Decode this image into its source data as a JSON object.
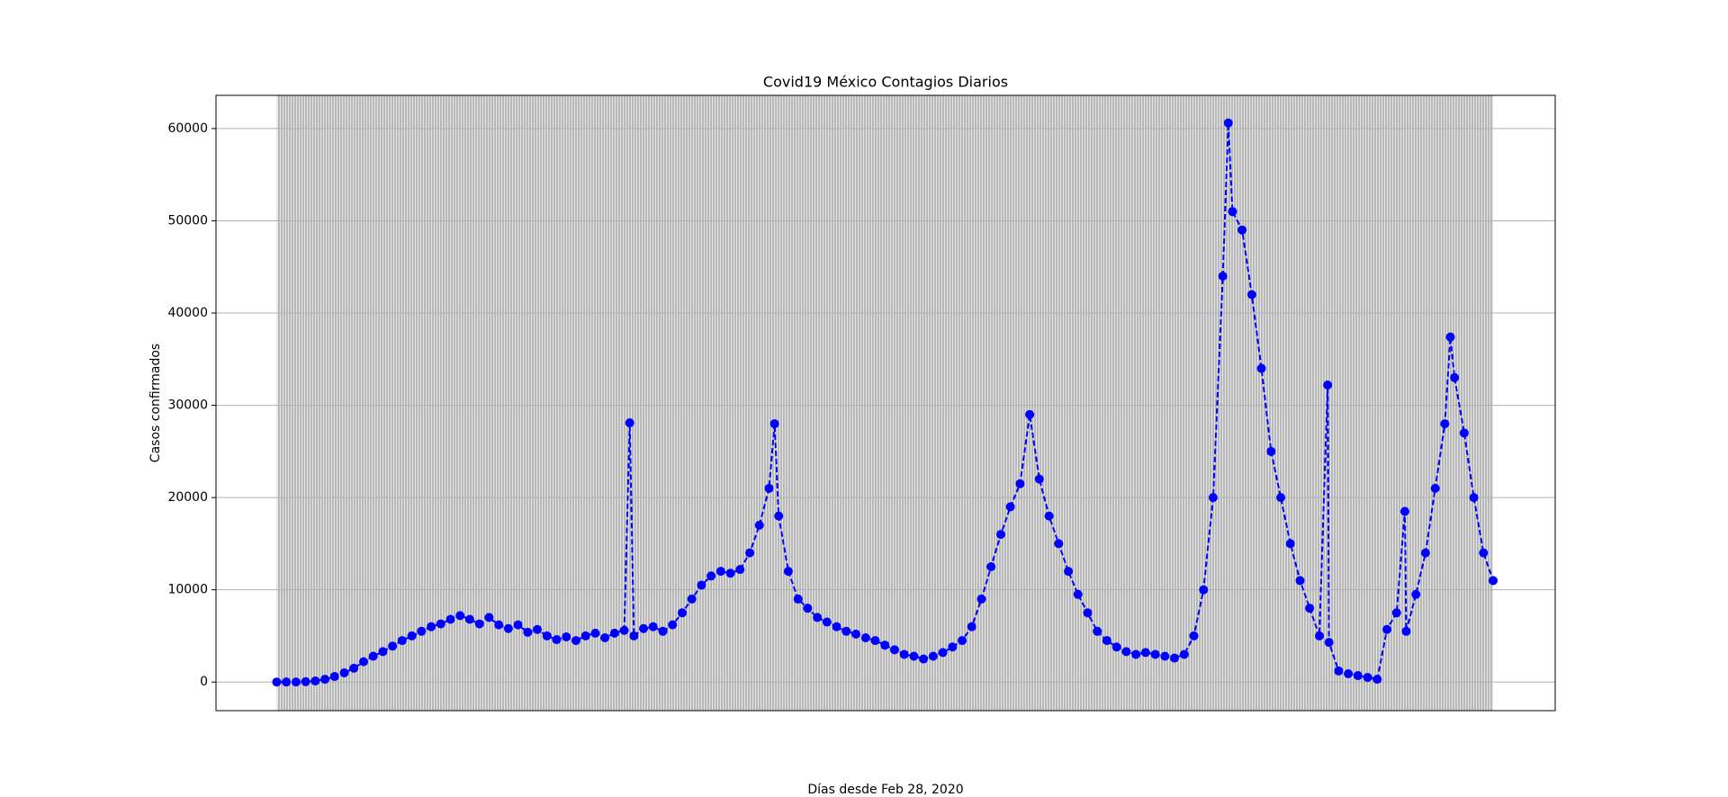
{
  "chart_data": {
    "type": "line",
    "title": "Covid19 México Contagios Diarios",
    "y_label": "Casos confirmados",
    "x_label": "Días desde Feb 28, 2020",
    "x": [
      0,
      7,
      14,
      21,
      28,
      35,
      42,
      49,
      56,
      63,
      70,
      77,
      84,
      91,
      98,
      105,
      112,
      119,
      126,
      133,
      140,
      147,
      154,
      161,
      168,
      175,
      182,
      189,
      196,
      203,
      210,
      217,
      224,
      231,
      238,
      245,
      252,
      256,
      259,
      266,
      273,
      280,
      287,
      294,
      301,
      308,
      315,
      322,
      329,
      336,
      343,
      350,
      357,
      361,
      364,
      371,
      378,
      385,
      392,
      399,
      406,
      413,
      420,
      427,
      434,
      441,
      448,
      455,
      462,
      469,
      476,
      483,
      490,
      497,
      504,
      511,
      518,
      525,
      532,
      539,
      546,
      553,
      560,
      567,
      574,
      581,
      588,
      595,
      602,
      609,
      616,
      623,
      630,
      637,
      644,
      651,
      658,
      665,
      672,
      679,
      686,
      690,
      693,
      700,
      707,
      714,
      721,
      728,
      735,
      742,
      749,
      756,
      762,
      763,
      770,
      777,
      784,
      791,
      798,
      805,
      812,
      818,
      819,
      826,
      833,
      840,
      847,
      851,
      854,
      861,
      868,
      875,
      882
    ],
    "series": [
      {
        "name": "Casos confirmados",
        "color": "#0000ff",
        "values": [
          0,
          5,
          10,
          40,
          120,
          300,
          600,
          1000,
          1500,
          2200,
          2800,
          3300,
          3900,
          4500,
          5000,
          5500,
          6000,
          6300,
          6800,
          7200,
          6800,
          6300,
          7000,
          6200,
          5800,
          6200,
          5400,
          5700,
          5000,
          4600,
          4900,
          4500,
          5000,
          5300,
          4800,
          5300,
          5600,
          28100,
          5000,
          5800,
          6000,
          5500,
          6200,
          7500,
          9000,
          10500,
          11500,
          12000,
          11800,
          12200,
          14000,
          17000,
          21000,
          28000,
          18000,
          12000,
          9000,
          8000,
          7000,
          6500,
          6000,
          5500,
          5200,
          4800,
          4500,
          4000,
          3500,
          3000,
          2800,
          2500,
          2800,
          3200,
          3800,
          4500,
          6000,
          9000,
          12500,
          16000,
          19000,
          21500,
          29000,
          22000,
          18000,
          15000,
          12000,
          9500,
          7500,
          5500,
          4500,
          3800,
          3300,
          3000,
          3200,
          3000,
          2800,
          2600,
          3000,
          5000,
          10000,
          20000,
          44000,
          60600,
          51000,
          49000,
          42000,
          34000,
          25000,
          20000,
          15000,
          11000,
          8000,
          5000,
          32200,
          4300,
          1200,
          900,
          700,
          500,
          300,
          5700,
          7500,
          18500,
          5500,
          9500,
          14000,
          21000,
          28000,
          37400,
          33000,
          27000,
          20000,
          14000,
          11000
        ]
      }
    ],
    "xlim": [
      -44,
      927
    ],
    "ylim": [
      -3100,
      63600
    ],
    "yticks": [
      0,
      10000,
      20000,
      30000,
      40000,
      50000,
      60000
    ],
    "grid": true
  }
}
